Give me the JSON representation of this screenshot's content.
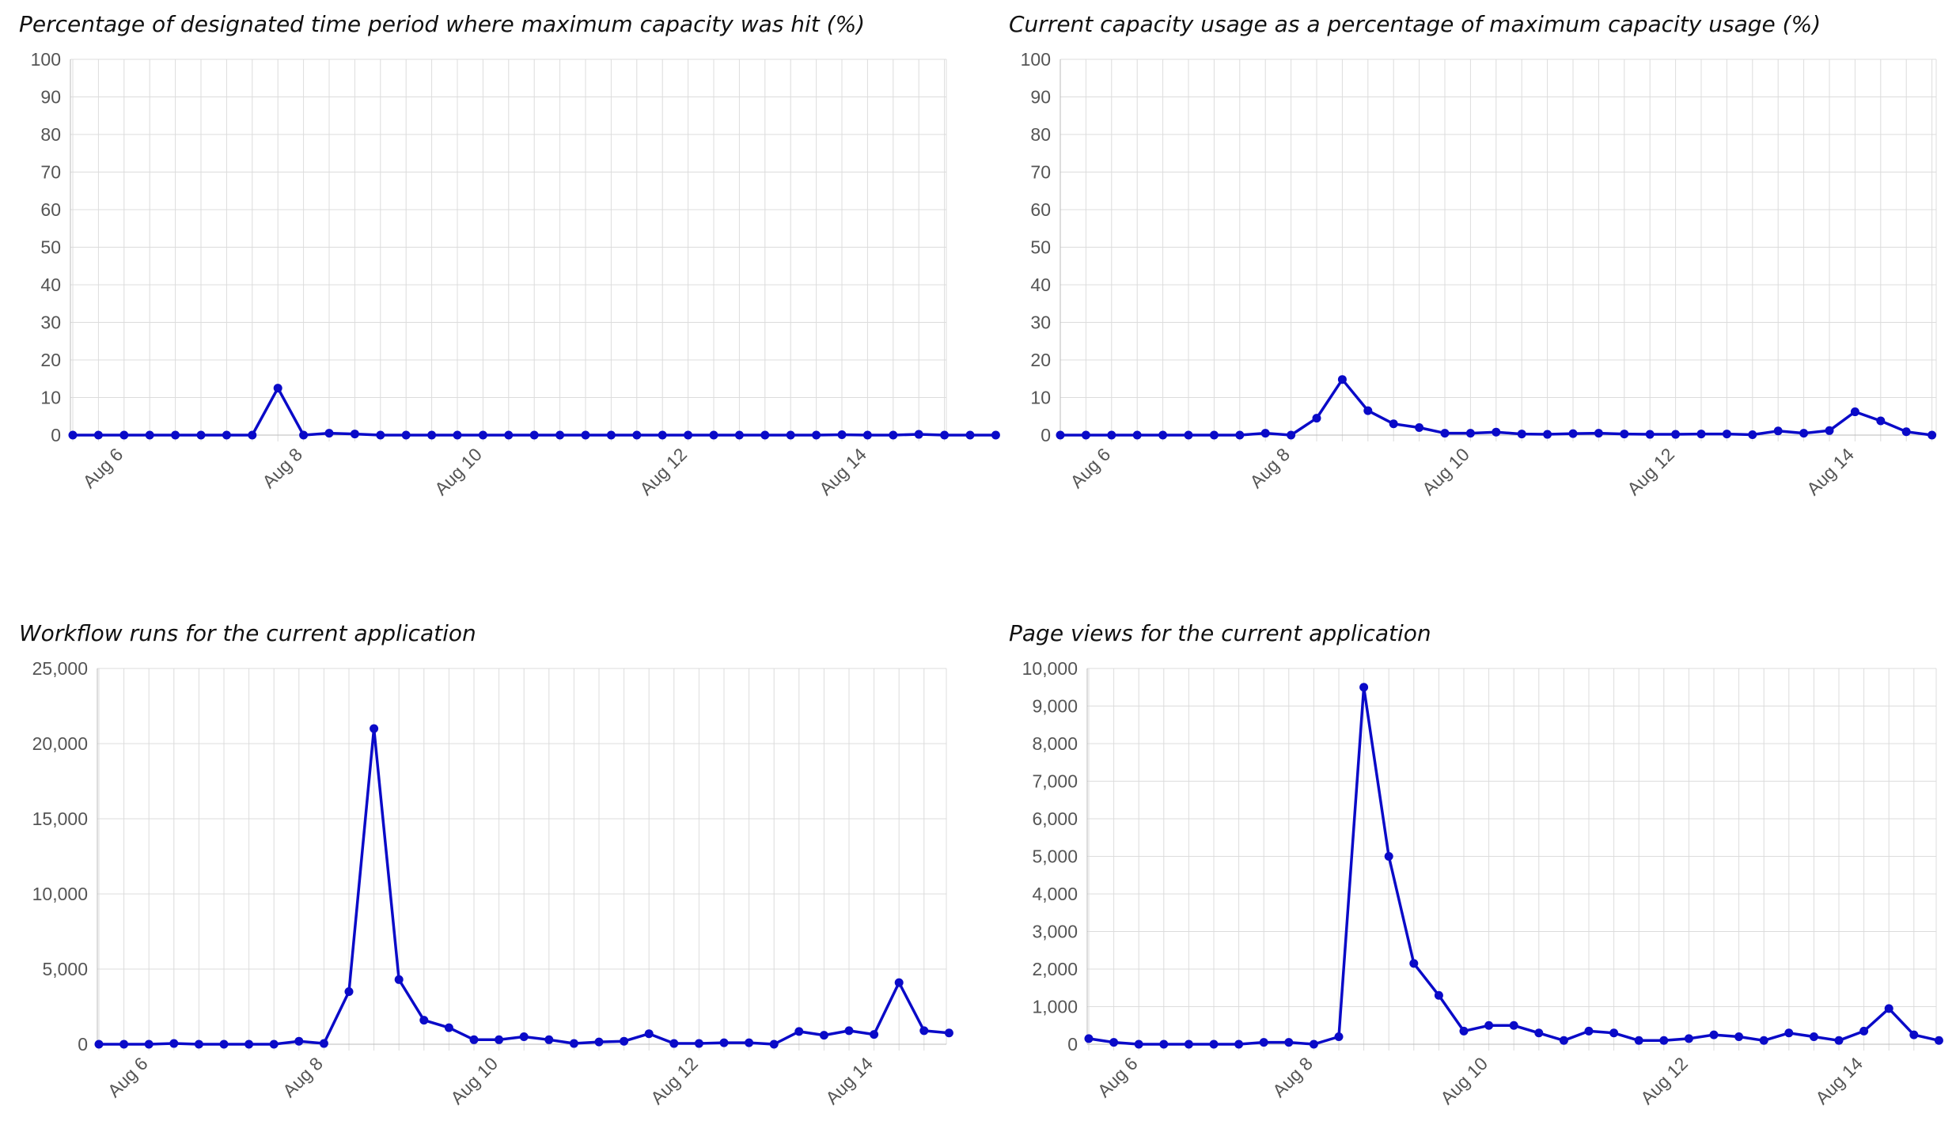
{
  "chart_data": [
    {
      "type": "line",
      "title": "Percentage of designated time period where maximum capacity was hit (%)",
      "xlabel": "",
      "ylabel": "",
      "ylim": [
        0,
        100
      ],
      "y_ticks": [
        "0",
        "10",
        "20",
        "30",
        "40",
        "50",
        "60",
        "70",
        "80",
        "90",
        "100"
      ],
      "x_tick_labels": [
        "Aug 6",
        "Aug 8",
        "Aug 10",
        "Aug 12",
        "Aug 14"
      ],
      "grid": true,
      "color": "#0a0ac8",
      "series": [
        {
          "values": [
            0,
            0,
            0,
            0,
            0,
            0,
            0,
            0,
            12.5,
            0,
            0.5,
            0.3,
            0,
            0,
            0,
            0,
            0,
            0,
            0,
            0,
            0,
            0,
            0,
            0,
            0,
            0,
            0,
            0,
            0,
            0,
            0.1,
            0,
            0,
            0.2,
            0,
            0,
            0
          ]
        }
      ]
    },
    {
      "type": "line",
      "title": "Current capacity usage as a percentage of maximum capacity usage (%)",
      "xlabel": "",
      "ylabel": "",
      "ylim": [
        0,
        100
      ],
      "y_ticks": [
        "0",
        "10",
        "20",
        "30",
        "40",
        "50",
        "60",
        "70",
        "80",
        "90",
        "100"
      ],
      "x_tick_labels": [
        "Aug 6",
        "Aug 8",
        "Aug 10",
        "Aug 12",
        "Aug 14"
      ],
      "grid": true,
      "color": "#0a0ac8",
      "series": [
        {
          "values": [
            0,
            0,
            0,
            0,
            0,
            0,
            0,
            0,
            0.5,
            0,
            4.5,
            14.8,
            6.5,
            3,
            2,
            0.5,
            0.5,
            0.8,
            0.3,
            0.2,
            0.4,
            0.5,
            0.3,
            0.2,
            0.2,
            0.3,
            0.3,
            0.1,
            1.1,
            0.5,
            1.2,
            6.2,
            3.8,
            0.9,
            0
          ]
        }
      ]
    },
    {
      "type": "line",
      "title": "Workflow runs for the current application",
      "xlabel": "",
      "ylabel": "",
      "ylim": [
        0,
        25000
      ],
      "y_ticks": [
        "0",
        "5,000",
        "10,000",
        "15,000",
        "20,000",
        "25,000"
      ],
      "x_tick_labels": [
        "Aug 6",
        "Aug 8",
        "Aug 10",
        "Aug 12",
        "Aug 14"
      ],
      "grid": true,
      "color": "#0a0ac8",
      "series": [
        {
          "values": [
            0,
            0,
            0,
            50,
            0,
            0,
            0,
            0,
            200,
            50,
            3500,
            21000,
            4300,
            1600,
            1100,
            300,
            300,
            500,
            300,
            50,
            150,
            200,
            700,
            50,
            50,
            100,
            100,
            0,
            850,
            600,
            900,
            650,
            4100,
            900,
            750
          ]
        }
      ]
    },
    {
      "type": "line",
      "title": "Page views for the current application",
      "xlabel": "",
      "ylabel": "",
      "ylim": [
        0,
        10000
      ],
      "y_ticks": [
        "0",
        "1,000",
        "2,000",
        "3,000",
        "4,000",
        "5,000",
        "6,000",
        "7,000",
        "8,000",
        "9,000",
        "10,000"
      ],
      "x_tick_labels": [
        "Aug 6",
        "Aug 8",
        "Aug 10",
        "Aug 12",
        "Aug 14"
      ],
      "grid": true,
      "color": "#0a0ac8",
      "series": [
        {
          "values": [
            150,
            50,
            0,
            0,
            0,
            0,
            0,
            50,
            50,
            0,
            200,
            9500,
            5000,
            2150,
            1300,
            350,
            500,
            500,
            300,
            100,
            350,
            300,
            100,
            100,
            150,
            250,
            200,
            100,
            300,
            200,
            100,
            350,
            950,
            250,
            100
          ]
        }
      ]
    }
  ]
}
